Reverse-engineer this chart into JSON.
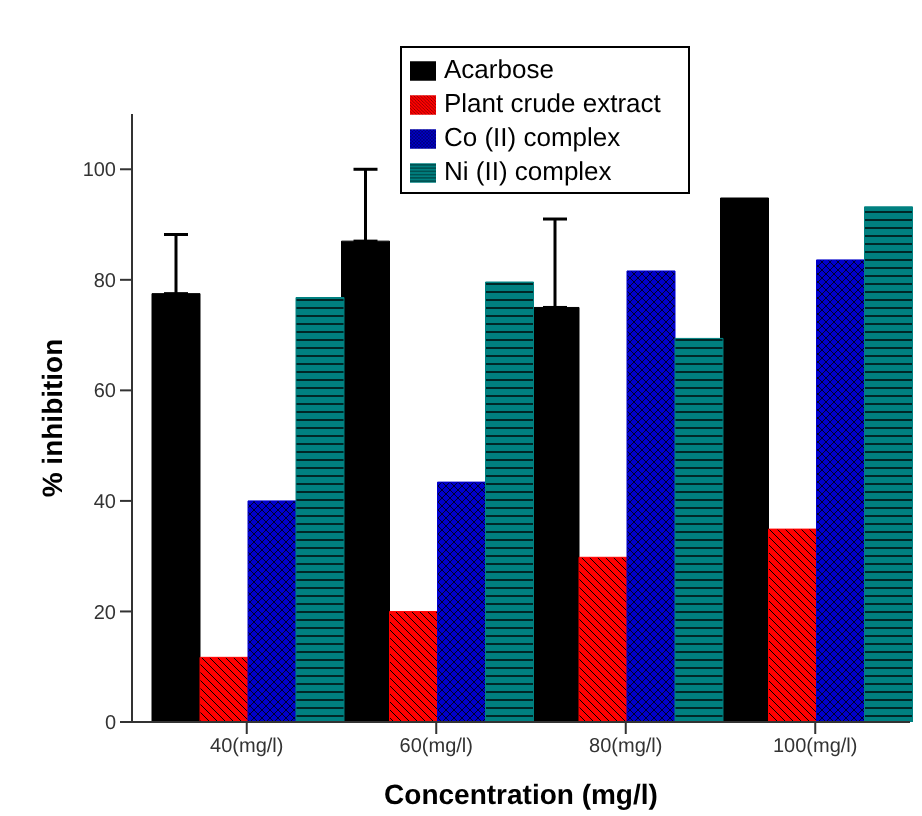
{
  "chart_data": {
    "type": "bar",
    "xlabel": "Concentration (mg/l)",
    "ylabel": "% inhibition",
    "categories": [
      "40(mg/l)",
      "60(mg/l)",
      "80(mg/l)",
      "100(mg/l)"
    ],
    "series": [
      {
        "name": "Acarbose",
        "color": "#000000",
        "values": [
          77.5,
          87,
          75,
          94.8
        ],
        "errors": [
          [
            77.5,
            88.2
          ],
          [
            87,
            100
          ],
          [
            75,
            91
          ],
          null
        ]
      },
      {
        "name": "Plant crude extract",
        "color": "#ff0000",
        "values": [
          11.7,
          20,
          29.8,
          34.9
        ]
      },
      {
        "name": "Co (II) complex",
        "color": "#0000cc",
        "values": [
          40,
          43.4,
          81.6,
          83.6
        ]
      },
      {
        "name": "Ni (II) complex",
        "color": "#008080",
        "values": [
          76.8,
          79.6,
          69.4,
          93.2
        ]
      }
    ],
    "ylim": [
      0,
      110
    ],
    "yticks": [
      0,
      20,
      40,
      60,
      80,
      100
    ],
    "grid": false,
    "legend": "top right"
  }
}
